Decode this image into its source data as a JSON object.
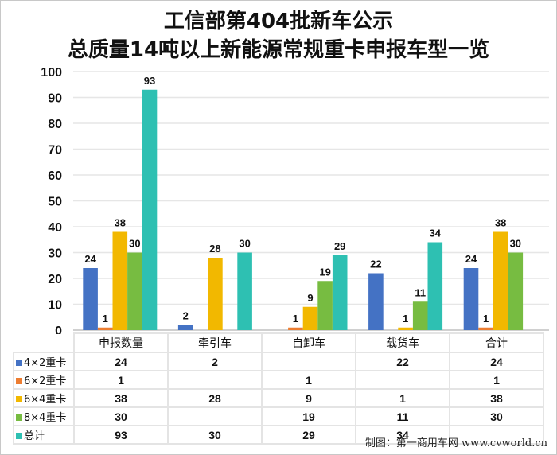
{
  "title_line1": "工信部第404批新车公示",
  "title_line2": "总质量14吨以上新能源常规重卡申报车型一览",
  "credit": "制图：第一商用车网 www.cvworld.cn",
  "chart_data": {
    "type": "bar",
    "categories": [
      "申报数量",
      "牵引车",
      "自卸车",
      "载货车",
      "合计"
    ],
    "series": [
      {
        "name": "4×2重卡",
        "color": "#4472C4",
        "values": [
          24,
          2,
          null,
          22,
          24
        ]
      },
      {
        "name": "6×2重卡",
        "color": "#ED7D31",
        "values": [
          1,
          null,
          1,
          null,
          1
        ]
      },
      {
        "name": "6×4重卡",
        "color": "#F2B800",
        "values": [
          38,
          28,
          9,
          1,
          38
        ]
      },
      {
        "name": "8×4重卡",
        "color": "#77BC41",
        "values": [
          30,
          null,
          19,
          11,
          30
        ]
      },
      {
        "name": "总计",
        "color": "#2EC0B2",
        "values": [
          93,
          30,
          29,
          34,
          null
        ]
      }
    ],
    "ylim": [
      0,
      100
    ],
    "yticks": [
      0,
      10,
      20,
      30,
      40,
      50,
      60,
      70,
      80,
      90,
      100
    ],
    "grid": true,
    "legend": "data-table"
  }
}
